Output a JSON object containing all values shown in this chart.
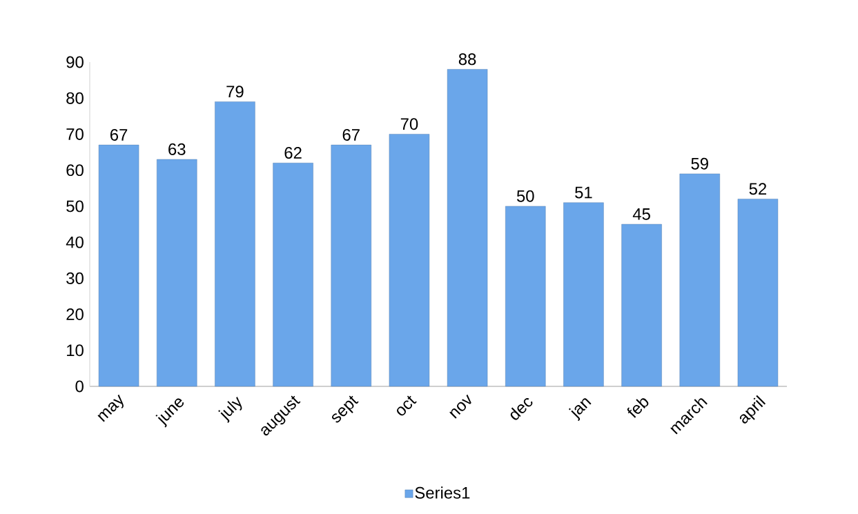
{
  "chart_data": {
    "type": "bar",
    "categories": [
      "may",
      "june",
      "july",
      "august",
      "sept",
      "oct",
      "nov",
      "dec",
      "jan",
      "feb",
      "march",
      "april"
    ],
    "series": [
      {
        "name": "Series1",
        "color": "#6aa6ea",
        "values": [
          67,
          63,
          79,
          62,
          67,
          70,
          88,
          50,
          51,
          45,
          59,
          52
        ]
      }
    ],
    "ylim": [
      0,
      90
    ],
    "yticks": [
      0,
      10,
      20,
      30,
      40,
      50,
      60,
      70,
      80,
      90
    ],
    "data_labels": true,
    "legend": "bottom",
    "grid": false
  }
}
